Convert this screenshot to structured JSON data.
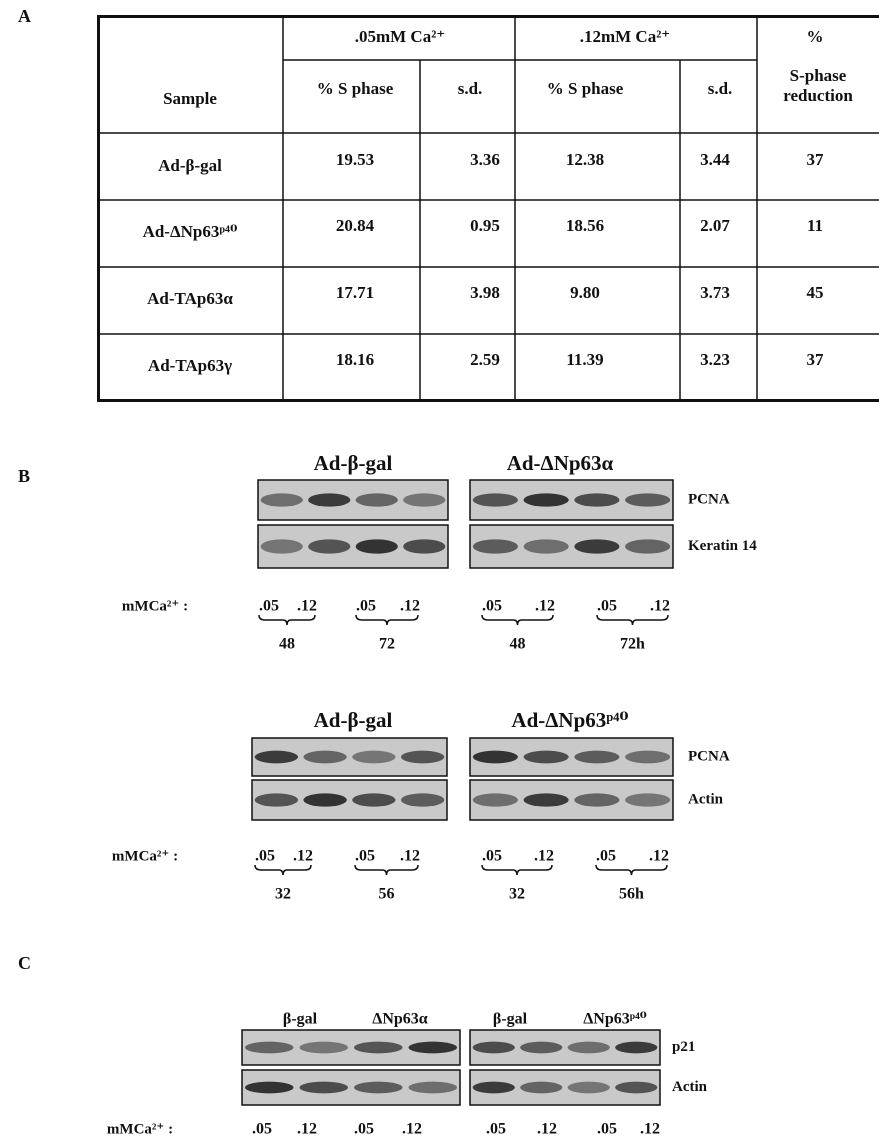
{
  "panel_labels": [
    "A",
    "B",
    "C"
  ],
  "table": {
    "group_headers": [
      ".05mM Ca²⁺",
      ".12mM Ca²⁺",
      "%"
    ],
    "column_headers": [
      "Sample",
      "% S phase",
      "s.d.",
      "% S phase",
      "s.d.",
      "S-phase reduction"
    ],
    "rows": [
      [
        "Ad-β-gal",
        "19.53",
        "3.36",
        "12.38",
        "3.44",
        "37"
      ],
      [
        "Ad-ΔNp63ᵖ⁴⁰",
        "20.84",
        "0.95",
        "18.56",
        "2.07",
        "11"
      ],
      [
        "Ad-TAp63α",
        "17.71",
        "3.98",
        "9.80",
        "3.73",
        "45"
      ],
      [
        "Ad-TAp63γ",
        "18.16",
        "2.59",
        "11.39",
        "3.23",
        "37"
      ]
    ]
  },
  "blots": [
    {
      "titles": [
        "Ad-β-gal",
        "Ad-ΔNp63α"
      ],
      "markers": [
        "PCNA",
        "Keratin 14"
      ],
      "ca_label": "mMCa²⁺ :",
      "concentrations": [
        ".05",
        ".12",
        ".05",
        ".12",
        ".05",
        ".12",
        ".05",
        ".12"
      ],
      "times": [
        "48",
        "72",
        "48",
        "72h"
      ]
    },
    {
      "titles": [
        "Ad-β-gal",
        "Ad-ΔNp63ᵖ⁴⁰"
      ],
      "markers": [
        "PCNA",
        "Actin"
      ],
      "ca_label": "mMCa²⁺ :",
      "concentrations": [
        ".05",
        ".12",
        ".05",
        ".12",
        ".05",
        ".12",
        ".05",
        ".12"
      ],
      "times": [
        "32",
        "56",
        "32",
        "56h"
      ]
    },
    {
      "titles": [
        "β-gal",
        "ΔNp63α",
        "β-gal",
        "ΔNp63ᵖ⁴⁰"
      ],
      "markers": [
        "p21",
        "Actin"
      ],
      "ca_label": "mMCa²⁺ :",
      "concentrations": [
        ".05",
        ".12",
        ".05",
        ".12",
        ".05",
        ".12",
        ".05",
        ".12"
      ]
    }
  ]
}
